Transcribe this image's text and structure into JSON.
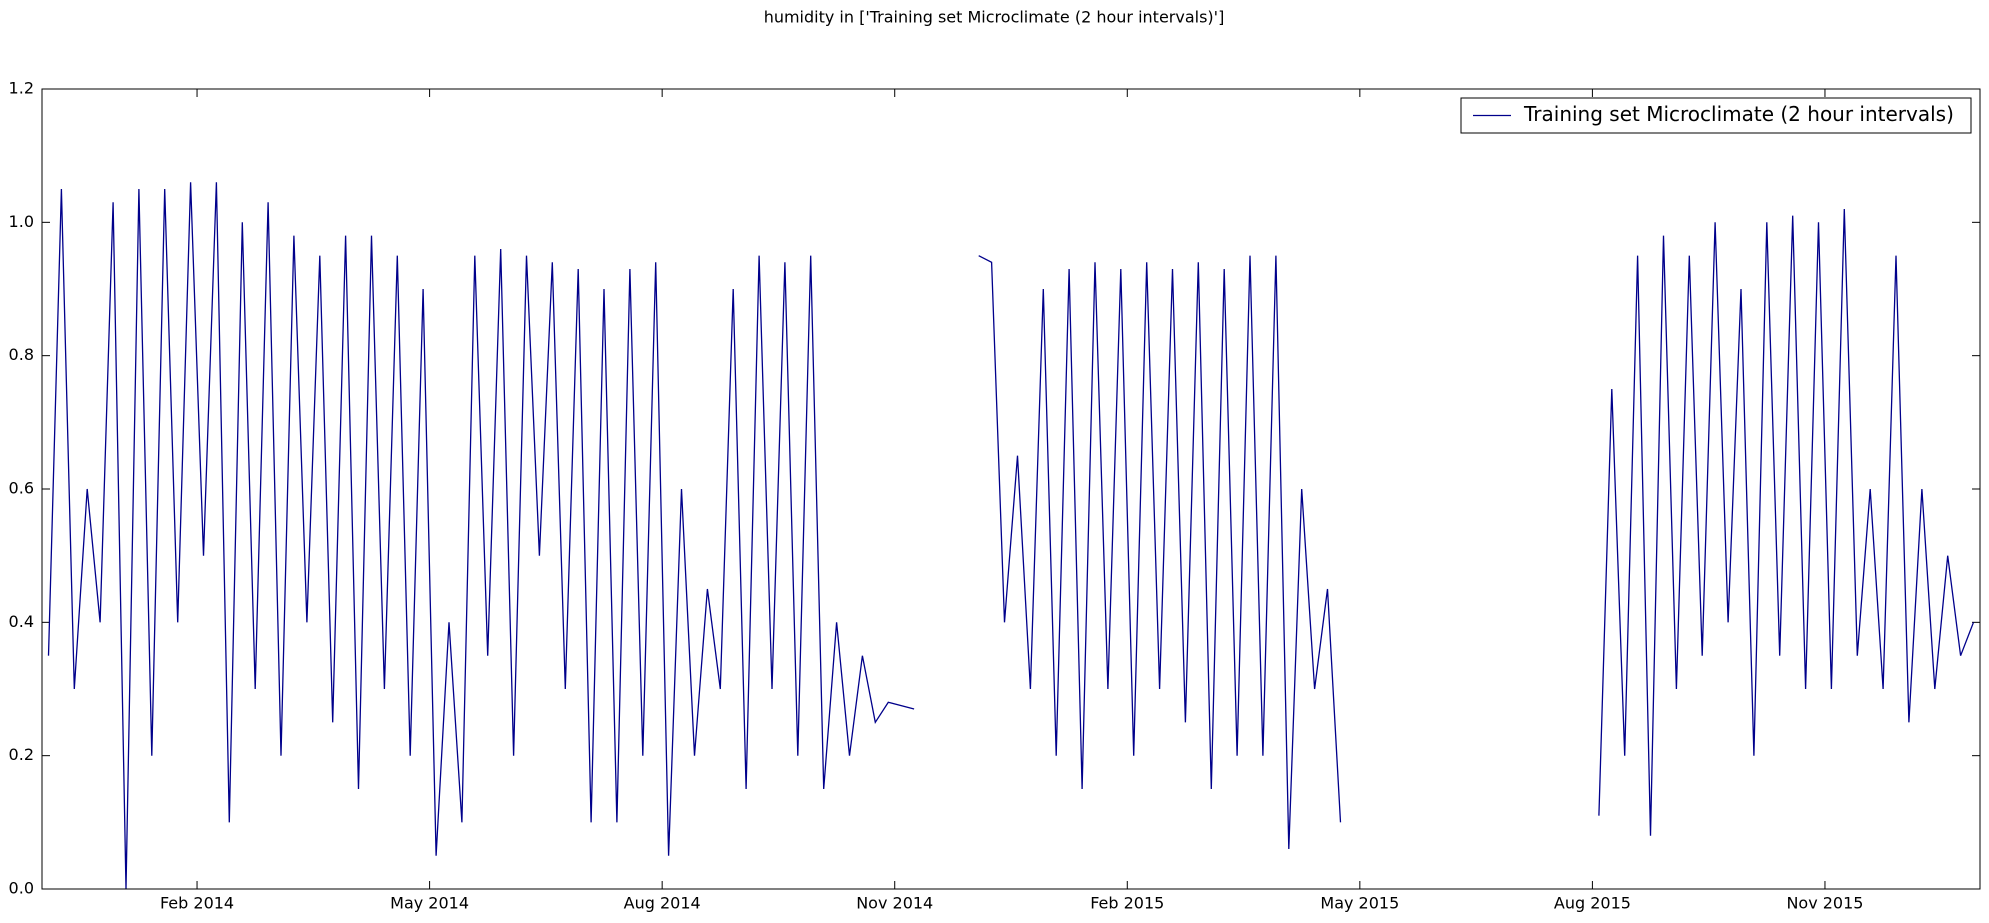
{
  "chart_data": {
    "type": "line",
    "title": "humidity in ['Training set Microclimate (2 hour intervals)']",
    "x": [
      "2013-12",
      "2013-12",
      "2013-12",
      "2013-12",
      "2013-12",
      "2013-12",
      "2014-01",
      "2014-01",
      "2014-01",
      "2014-01",
      "2014-01",
      "2014-01",
      "2014-02",
      "2014-02",
      "2014-02",
      "2014-02",
      "2014-02",
      "2014-02",
      "2014-03",
      "2014-03",
      "2014-03",
      "2014-03",
      "2014-03",
      "2014-03",
      "2014-04",
      "2014-04",
      "2014-04",
      "2014-04",
      "2014-04",
      "2014-04",
      "2014-05",
      "2014-05",
      "2014-05",
      "2014-05",
      "2014-05",
      "2014-05",
      "2014-06",
      "2014-06",
      "2014-06",
      "2014-06",
      "2014-06",
      "2014-06",
      "2014-07",
      "2014-07",
      "2014-07",
      "2014-07",
      "2014-07",
      "2014-07",
      "2014-08",
      "2014-08",
      "2014-08",
      "2014-08",
      "2014-08",
      "2014-08",
      "2014-09",
      "2014-09",
      "2014-09",
      "2014-09",
      "2014-09",
      "2014-09",
      "2014-10",
      "2014-10",
      "2014-10",
      "2014-10",
      "2014-10",
      "2014-10",
      "2014-11",
      "2014-11",
      "2014-12",
      "2014-12",
      "2014-12",
      "2014-12",
      "2014-12",
      "2014-12",
      "2015-01",
      "2015-01",
      "2015-01",
      "2015-01",
      "2015-01",
      "2015-01",
      "2015-02",
      "2015-02",
      "2015-02",
      "2015-02",
      "2015-02",
      "2015-02",
      "2015-03",
      "2015-03",
      "2015-03",
      "2015-03",
      "2015-03",
      "2015-03",
      "2015-04",
      "2015-04",
      "2015-04",
      "2015-04",
      "2015-04",
      "2015-04",
      "2015-08",
      "2015-08",
      "2015-08",
      "2015-08",
      "2015-08",
      "2015-08",
      "2015-09",
      "2015-09",
      "2015-09",
      "2015-09",
      "2015-09",
      "2015-09",
      "2015-10",
      "2015-10",
      "2015-10",
      "2015-10",
      "2015-10",
      "2015-10",
      "2015-11",
      "2015-11",
      "2015-11",
      "2015-11",
      "2015-11",
      "2015-11",
      "2015-12",
      "2015-12",
      "2015-12",
      "2015-12",
      "2015-12",
      "2015-12"
    ],
    "series": [
      {
        "name": "Training set Microclimate (2 hour intervals)",
        "color": "#00008b",
        "values": [
          0.35,
          1.05,
          0.3,
          0.6,
          0.4,
          1.03,
          0.0,
          1.05,
          0.2,
          1.05,
          0.4,
          1.06,
          0.5,
          1.06,
          0.1,
          1.0,
          0.3,
          1.03,
          0.2,
          0.98,
          0.4,
          0.95,
          0.25,
          0.98,
          0.15,
          0.98,
          0.3,
          0.95,
          0.2,
          0.9,
          0.05,
          0.4,
          0.1,
          0.95,
          0.35,
          0.96,
          0.2,
          0.95,
          0.5,
          0.94,
          0.3,
          0.93,
          0.1,
          0.9,
          0.1,
          0.93,
          0.2,
          0.94,
          0.05,
          0.6,
          0.2,
          0.45,
          0.3,
          0.9,
          0.15,
          0.95,
          0.3,
          0.94,
          0.2,
          0.95,
          0.15,
          0.4,
          0.2,
          0.35,
          0.25,
          0.28,
          0.27,
          null,
          0.95,
          0.94,
          0.4,
          0.65,
          0.3,
          0.9,
          0.2,
          0.93,
          0.15,
          0.94,
          0.3,
          0.93,
          0.2,
          0.94,
          0.3,
          0.93,
          0.25,
          0.94,
          0.15,
          0.93,
          0.2,
          0.95,
          0.2,
          0.95,
          0.06,
          0.6,
          0.3,
          0.45,
          0.1,
          null,
          0.11,
          0.75,
          0.2,
          0.95,
          0.08,
          0.98,
          0.3,
          0.95,
          0.35,
          1.0,
          0.4,
          0.9,
          0.2,
          1.0,
          0.35,
          1.01,
          0.3,
          1.0,
          0.3,
          1.02,
          0.35,
          0.6,
          0.3,
          0.95,
          0.25,
          0.6,
          0.3,
          0.5,
          0.35,
          0.4
        ]
      }
    ],
    "xlim": [
      "2013-12",
      "2016-01"
    ],
    "xticks": [
      {
        "value": "2014-02",
        "label": "Feb 2014"
      },
      {
        "value": "2014-05",
        "label": "May 2014"
      },
      {
        "value": "2014-08",
        "label": "Aug 2014"
      },
      {
        "value": "2014-11",
        "label": "Nov 2014"
      },
      {
        "value": "2015-02",
        "label": "Feb 2015"
      },
      {
        "value": "2015-05",
        "label": "May 2015"
      },
      {
        "value": "2015-08",
        "label": "Aug 2015"
      },
      {
        "value": "2015-11",
        "label": "Nov 2015"
      }
    ],
    "ylim": [
      0,
      1.2
    ],
    "yticks": [
      {
        "value": 0,
        "label": "0.0"
      },
      0.2,
      0.4,
      0.6,
      0.8,
      {
        "value": 1,
        "label": "1.0"
      },
      1.2
    ],
    "legend": "upper right",
    "grid": false
  }
}
